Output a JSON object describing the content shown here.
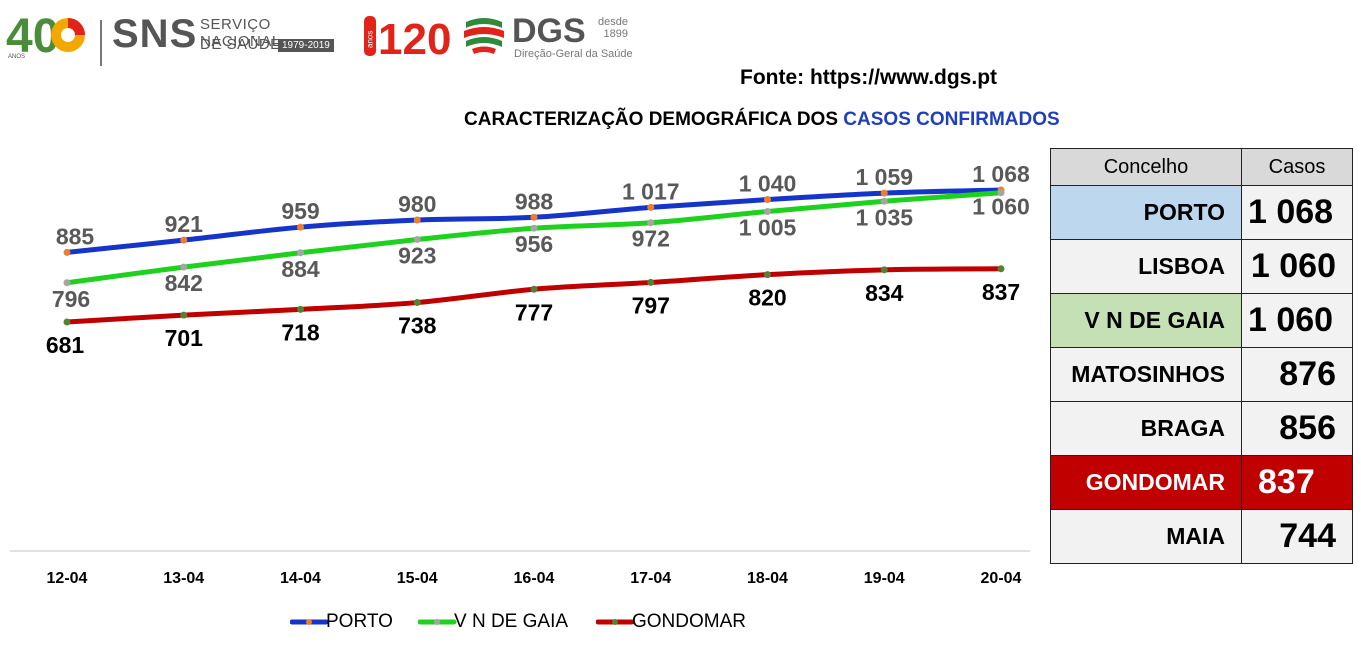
{
  "header": {
    "anniversary_number": "40",
    "anniversary_word": "ANOS",
    "sns_acronym": "SNS",
    "sns_name_line1": "SERVIÇO NACIONAL",
    "sns_name_line2": "DE SAÚDE",
    "sns_years": "1979-2019",
    "anos_label": "anos",
    "anos_number": "120",
    "dgs_acronym": "DGS",
    "dgs_since_line1": "desde",
    "dgs_since_line2": "1899",
    "dgs_name": "Direção-Geral da Saúde"
  },
  "source": "Fonte: https://www.dgs.pt",
  "title": {
    "prefix": "CARACTERIZAÇÃO DEMOGRÁFICA DOS ",
    "highlight": "CASOS CONFIRMADOS"
  },
  "colors": {
    "porto": "#1535c9",
    "gaia": "#1fd11f",
    "gondomar": "#c00000",
    "title_accent": "#1f3fbf",
    "highlight_porto": "#bdd7ee",
    "highlight_gaia": "#c5e0b4",
    "highlight_gondomar": "#c00000"
  },
  "chart_data": {
    "type": "line",
    "categories": [
      "12-04",
      "13-04",
      "14-04",
      "15-04",
      "16-04",
      "17-04",
      "18-04",
      "19-04",
      "20-04"
    ],
    "series": [
      {
        "name": "PORTO",
        "color": "#1535c9",
        "marker_color": "#ed7d31",
        "values": [
          885,
          921,
          959,
          980,
          988,
          1017,
          1040,
          1059,
          1068
        ],
        "labels": [
          "885",
          "921",
          "959",
          "980",
          "988",
          "1 017",
          "1 040",
          "1 059",
          "1 068"
        ]
      },
      {
        "name": "V N DE GAIA",
        "color": "#1fd11f",
        "marker_color": "#a5a5a5",
        "values": [
          796,
          842,
          884,
          923,
          956,
          972,
          1005,
          1035,
          1060
        ],
        "labels": [
          "796",
          "842",
          "884",
          "923",
          "956",
          "972",
          "1 005",
          "1 035",
          "1 060"
        ]
      },
      {
        "name": "GONDOMAR",
        "color": "#c00000",
        "marker_color": "#548235",
        "values": [
          681,
          701,
          718,
          738,
          777,
          797,
          820,
          834,
          837
        ],
        "labels": [
          "681",
          "701",
          "718",
          "738",
          "777",
          "797",
          "820",
          "834",
          "837"
        ]
      }
    ],
    "grid": false,
    "legend_position": "bottom"
  },
  "table": {
    "headers": [
      "Concelho",
      "Casos"
    ],
    "rows": [
      {
        "concelho": "PORTO",
        "casos": "1 068",
        "style": "porto"
      },
      {
        "concelho": "LISBOA",
        "casos": "1 060",
        "style": "plain"
      },
      {
        "concelho": "V N DE GAIA",
        "casos": "1 060",
        "style": "gaia"
      },
      {
        "concelho": "MATOSINHOS",
        "casos": "876",
        "style": "plain"
      },
      {
        "concelho": "BRAGA",
        "casos": "856",
        "style": "plain"
      },
      {
        "concelho": "GONDOMAR",
        "casos": "837",
        "style": "gondomar"
      },
      {
        "concelho": "MAIA",
        "casos": "744",
        "style": "plain"
      }
    ]
  }
}
